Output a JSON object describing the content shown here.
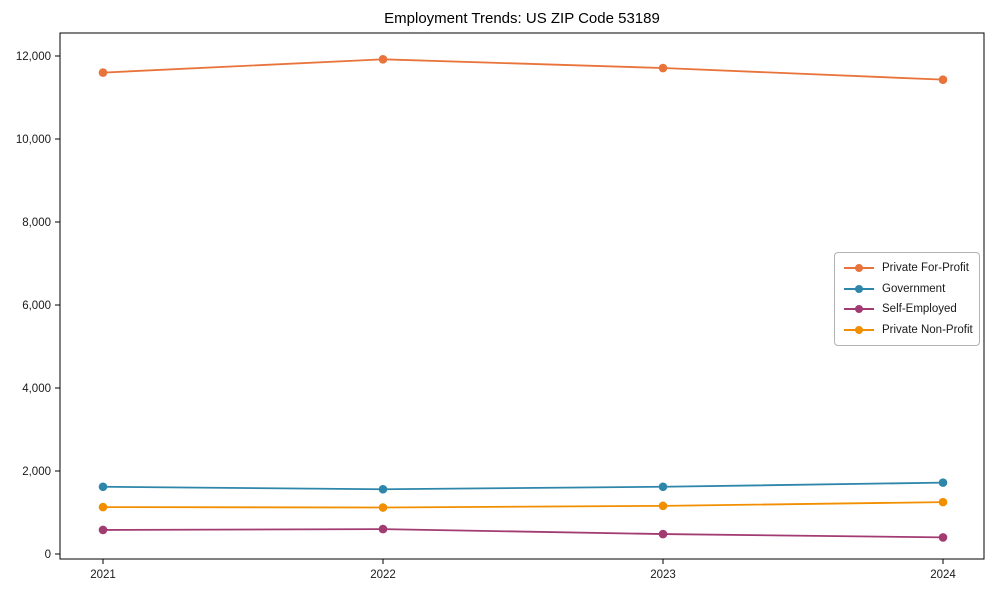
{
  "chart_data": {
    "type": "line",
    "title": "Employment Trends: US ZIP Code 53189",
    "xlabel": "",
    "ylabel": "",
    "categories": [
      "2021",
      "2022",
      "2023",
      "2024"
    ],
    "series": [
      {
        "name": "Private For-Profit",
        "color": "#E8743B",
        "values": [
          11600,
          11920,
          11710,
          11430
        ]
      },
      {
        "name": "Government",
        "color": "#2E86AB",
        "values": [
          1620,
          1560,
          1620,
          1720
        ]
      },
      {
        "name": "Self-Employed",
        "color": "#A23B72",
        "values": [
          580,
          600,
          480,
          400
        ]
      },
      {
        "name": "Private Non-Profit",
        "color": "#F18F01",
        "values": [
          1130,
          1120,
          1160,
          1250
        ]
      }
    ],
    "ylim": [
      0,
      12000
    ],
    "y_ticks": [
      0,
      2000,
      4000,
      6000,
      8000,
      10000,
      12000
    ],
    "y_tick_labels": [
      "0",
      "2,000",
      "4,000",
      "6,000",
      "8,000",
      "10,000",
      "12,000"
    ],
    "grid": false,
    "legend_position": "center right",
    "marker": "circle",
    "axis_color": "#000000",
    "tick_label_color": "#1a1a1a"
  }
}
